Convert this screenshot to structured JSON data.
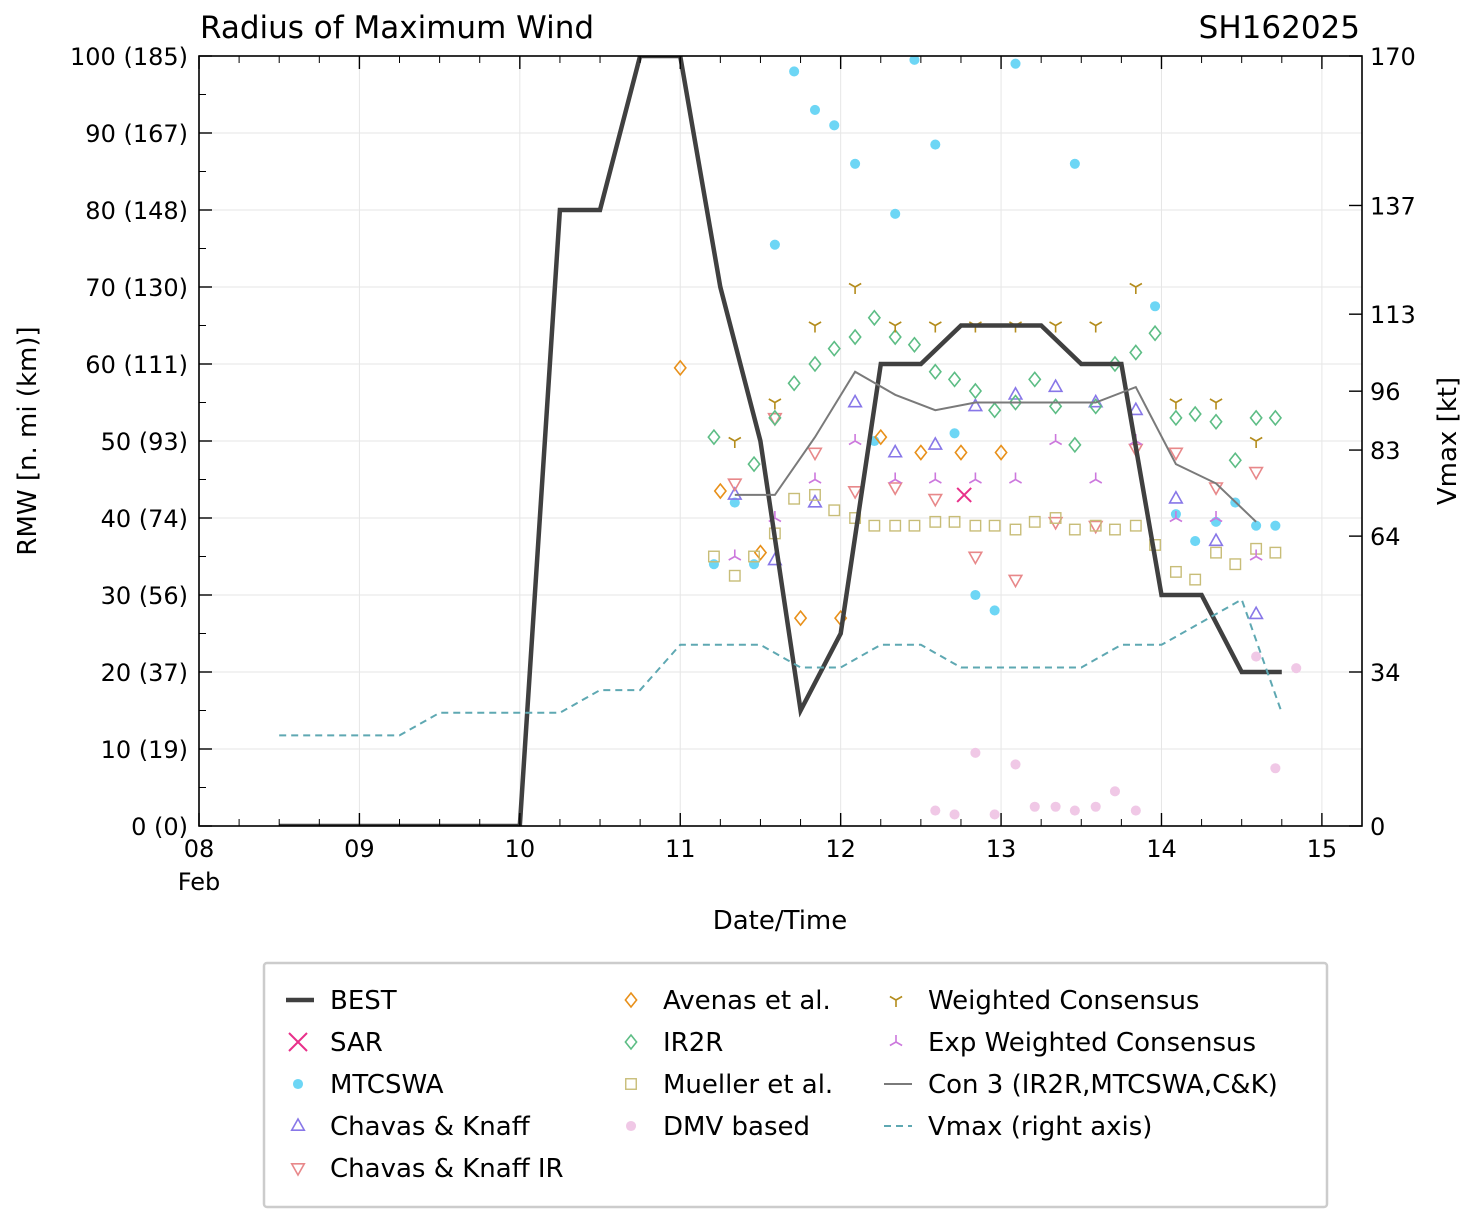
{
  "chart_data": {
    "type": "scatter",
    "title": "Radius of Maximum Wind",
    "storm_id": "SH162025",
    "xlabel": "Date/Time",
    "ylabel": "RMW [n. mi (km)]",
    "y2label": "Vmax [kt]",
    "xlim": [
      8,
      15.25
    ],
    "ylim": [
      0,
      100
    ],
    "y2lim": [
      0,
      170
    ],
    "grid": true,
    "legend_position": "bottom",
    "x_ticks": [
      {
        "v": 8,
        "label": "08",
        "sub": "Feb"
      },
      {
        "v": 9,
        "label": "09",
        "sub": ""
      },
      {
        "v": 10,
        "label": "10",
        "sub": ""
      },
      {
        "v": 11,
        "label": "11",
        "sub": ""
      },
      {
        "v": 12,
        "label": "12",
        "sub": ""
      },
      {
        "v": 13,
        "label": "13",
        "sub": ""
      },
      {
        "v": 14,
        "label": "14",
        "sub": ""
      },
      {
        "v": 15,
        "label": "15",
        "sub": ""
      }
    ],
    "y_ticks": [
      {
        "v": 0,
        "label": "0 (0)"
      },
      {
        "v": 10,
        "label": "10 (19)"
      },
      {
        "v": 20,
        "label": "20 (37)"
      },
      {
        "v": 30,
        "label": "30 (56)"
      },
      {
        "v": 40,
        "label": "40 (74)"
      },
      {
        "v": 50,
        "label": "50 (93)"
      },
      {
        "v": 60,
        "label": "60 (111)"
      },
      {
        "v": 70,
        "label": "70 (130)"
      },
      {
        "v": 80,
        "label": "80 (148)"
      },
      {
        "v": 90,
        "label": "90 (167)"
      },
      {
        "v": 100,
        "label": "100 (185)"
      }
    ],
    "y2_ticks": [
      {
        "v": 0,
        "label": "0"
      },
      {
        "v": 34,
        "label": "34"
      },
      {
        "v": 64,
        "label": "64"
      },
      {
        "v": 83,
        "label": "83"
      },
      {
        "v": 96,
        "label": "96"
      },
      {
        "v": 113,
        "label": "113"
      },
      {
        "v": 137,
        "label": "137"
      },
      {
        "v": 170,
        "label": "170"
      }
    ],
    "series": [
      {
        "name": "BEST",
        "kind": "line",
        "color": "#404040",
        "dash": "",
        "axis": "left",
        "points": [
          [
            8.5,
            0
          ],
          [
            8.75,
            0
          ],
          [
            9,
            0
          ],
          [
            9.25,
            0
          ],
          [
            9.5,
            0
          ],
          [
            9.75,
            0
          ],
          [
            10,
            0
          ],
          [
            10.25,
            80
          ],
          [
            10.5,
            80
          ],
          [
            10.75,
            100
          ],
          [
            11,
            100
          ],
          [
            11.25,
            70
          ],
          [
            11.5,
            50
          ],
          [
            11.75,
            15
          ],
          [
            12,
            25
          ],
          [
            12.25,
            60
          ],
          [
            12.5,
            60
          ],
          [
            12.75,
            65
          ],
          [
            13,
            65
          ],
          [
            13.25,
            65
          ],
          [
            13.5,
            60
          ],
          [
            13.75,
            60
          ],
          [
            14,
            30
          ],
          [
            14.25,
            30
          ],
          [
            14.5,
            20
          ],
          [
            14.75,
            20
          ]
        ]
      },
      {
        "name": "SAR",
        "kind": "marker",
        "marker": "x",
        "color": "#e8308a",
        "axis": "left",
        "points": [
          [
            12.77,
            43
          ]
        ]
      },
      {
        "name": "MTCSWA",
        "kind": "marker",
        "marker": "circle",
        "color": "#6dd6f5",
        "axis": "left",
        "points": [
          [
            11.21,
            34
          ],
          [
            11.34,
            42
          ],
          [
            11.46,
            34
          ],
          [
            11.59,
            75.5
          ],
          [
            11.71,
            98
          ],
          [
            11.84,
            93
          ],
          [
            11.96,
            91
          ],
          [
            12.09,
            86
          ],
          [
            12.34,
            79.5
          ],
          [
            12.21,
            50
          ],
          [
            12.46,
            99.5
          ],
          [
            12.59,
            88.5
          ],
          [
            12.71,
            51
          ],
          [
            12.84,
            30
          ],
          [
            12.96,
            28
          ],
          [
            13.09,
            99
          ],
          [
            13.46,
            86
          ],
          [
            13.96,
            67.5
          ],
          [
            14.09,
            40.5
          ],
          [
            14.21,
            37
          ],
          [
            14.34,
            39.5
          ],
          [
            14.46,
            42
          ],
          [
            14.59,
            39
          ],
          [
            14.71,
            39
          ]
        ]
      },
      {
        "name": "Chavas & Knaff",
        "kind": "marker",
        "marker": "tri-up",
        "color": "#8877e8",
        "axis": "left",
        "points": [
          [
            11.34,
            43
          ],
          [
            11.59,
            34.5
          ],
          [
            11.84,
            42
          ],
          [
            12.09,
            55
          ],
          [
            12.34,
            48.5
          ],
          [
            12.59,
            49.5
          ],
          [
            12.84,
            54.5
          ],
          [
            13.09,
            56
          ],
          [
            13.34,
            57
          ],
          [
            13.59,
            55
          ],
          [
            13.84,
            54
          ],
          [
            14.09,
            42.5
          ],
          [
            14.34,
            37
          ],
          [
            14.59,
            27.5
          ]
        ]
      },
      {
        "name": "Chavas & Knaff IR",
        "kind": "marker",
        "marker": "tri-down",
        "color": "#e8888a",
        "axis": "left",
        "points": [
          [
            11.34,
            44.5
          ],
          [
            11.59,
            53
          ],
          [
            11.84,
            48.5
          ],
          [
            12.09,
            43.5
          ],
          [
            12.34,
            44
          ],
          [
            12.59,
            42.5
          ],
          [
            12.84,
            35
          ],
          [
            13.09,
            32
          ],
          [
            13.34,
            39.5
          ],
          [
            13.59,
            39
          ],
          [
            13.84,
            49
          ],
          [
            14.09,
            48.5
          ],
          [
            14.34,
            44
          ],
          [
            14.59,
            46
          ]
        ]
      },
      {
        "name": "Avenas et al.",
        "kind": "marker",
        "marker": "diamond",
        "color": "#e8901a",
        "axis": "left",
        "points": [
          [
            11.0,
            59.5
          ],
          [
            11.25,
            43.5
          ],
          [
            11.5,
            35.5
          ],
          [
            11.75,
            27
          ],
          [
            12.0,
            27
          ],
          [
            12.25,
            50.5
          ],
          [
            12.5,
            48.5
          ],
          [
            12.75,
            48.5
          ],
          [
            13.0,
            48.5
          ]
        ]
      },
      {
        "name": "IR2R",
        "kind": "marker",
        "marker": "diamond",
        "color": "#5dbd85",
        "axis": "left",
        "points": [
          [
            11.21,
            50.5
          ],
          [
            11.46,
            47
          ],
          [
            11.59,
            53
          ],
          [
            11.71,
            57.5
          ],
          [
            11.84,
            60
          ],
          [
            11.96,
            62
          ],
          [
            12.09,
            63.5
          ],
          [
            12.21,
            66
          ],
          [
            12.34,
            63.5
          ],
          [
            12.46,
            62.5
          ],
          [
            12.59,
            59
          ],
          [
            12.71,
            58
          ],
          [
            12.84,
            56.5
          ],
          [
            12.96,
            54
          ],
          [
            13.09,
            55
          ],
          [
            13.21,
            58
          ],
          [
            13.34,
            54.5
          ],
          [
            13.46,
            49.5
          ],
          [
            13.59,
            54.5
          ],
          [
            13.71,
            60
          ],
          [
            13.84,
            61.5
          ],
          [
            13.96,
            64
          ],
          [
            14.09,
            53
          ],
          [
            14.21,
            53.5
          ],
          [
            14.34,
            52.5
          ],
          [
            14.46,
            47.5
          ],
          [
            14.59,
            53
          ],
          [
            14.71,
            53
          ]
        ]
      },
      {
        "name": "Mueller et al.",
        "kind": "marker",
        "marker": "square",
        "color": "#c8bd78",
        "axis": "left",
        "points": [
          [
            11.21,
            35
          ],
          [
            11.34,
            32.5
          ],
          [
            11.46,
            35
          ],
          [
            11.59,
            38
          ],
          [
            11.71,
            42.5
          ],
          [
            11.84,
            43
          ],
          [
            11.96,
            41
          ],
          [
            12.09,
            40
          ],
          [
            12.21,
            39
          ],
          [
            12.34,
            39
          ],
          [
            12.46,
            39
          ],
          [
            12.59,
            39.5
          ],
          [
            12.71,
            39.5
          ],
          [
            12.84,
            39
          ],
          [
            12.96,
            39
          ],
          [
            13.09,
            38.5
          ],
          [
            13.21,
            39.5
          ],
          [
            13.34,
            40
          ],
          [
            13.46,
            38.5
          ],
          [
            13.59,
            39
          ],
          [
            13.71,
            38.5
          ],
          [
            13.84,
            39
          ],
          [
            13.96,
            36.5
          ],
          [
            14.09,
            33
          ],
          [
            14.21,
            32
          ],
          [
            14.34,
            35.5
          ],
          [
            14.46,
            34
          ],
          [
            14.59,
            36
          ],
          [
            14.71,
            35.5
          ]
        ]
      },
      {
        "name": "DMV based",
        "kind": "marker",
        "marker": "circle",
        "color": "#f0c8e6",
        "axis": "left",
        "points": [
          [
            12.59,
            2
          ],
          [
            12.71,
            1.5
          ],
          [
            12.84,
            9.5
          ],
          [
            12.96,
            1.5
          ],
          [
            13.09,
            8
          ],
          [
            13.21,
            2.5
          ],
          [
            13.34,
            2.5
          ],
          [
            13.46,
            2
          ],
          [
            13.59,
            2.5
          ],
          [
            13.71,
            4.5
          ],
          [
            13.84,
            2
          ],
          [
            14.59,
            22
          ],
          [
            14.71,
            7.5
          ],
          [
            14.84,
            20.5
          ]
        ]
      },
      {
        "name": "Weighted Consensus",
        "kind": "marker",
        "marker": "tri-down-y",
        "color": "#b48c1c",
        "axis": "left",
        "points": [
          [
            11.34,
            50
          ],
          [
            11.59,
            55
          ],
          [
            11.84,
            65
          ],
          [
            12.09,
            70
          ],
          [
            12.34,
            65
          ],
          [
            12.59,
            65
          ],
          [
            12.84,
            65
          ],
          [
            13.09,
            65
          ],
          [
            13.34,
            65
          ],
          [
            13.59,
            65
          ],
          [
            13.84,
            70
          ],
          [
            14.09,
            55
          ],
          [
            14.34,
            55
          ],
          [
            14.59,
            50
          ]
        ]
      },
      {
        "name": "Exp Weighted Consensus",
        "kind": "marker",
        "marker": "tri-up-y",
        "color": "#cc78dd",
        "axis": "left",
        "points": [
          [
            11.34,
            35
          ],
          [
            11.59,
            40
          ],
          [
            11.84,
            45
          ],
          [
            12.09,
            50
          ],
          [
            12.34,
            45
          ],
          [
            12.59,
            45
          ],
          [
            12.84,
            45
          ],
          [
            13.09,
            45
          ],
          [
            13.34,
            50
          ],
          [
            13.59,
            45
          ],
          [
            13.84,
            50
          ],
          [
            14.09,
            40
          ],
          [
            14.34,
            40
          ],
          [
            14.59,
            35
          ]
        ]
      },
      {
        "name": "Con 3 (IR2R,MTCSWA,C&K)",
        "kind": "line",
        "color": "#7a7a7a",
        "dash": "",
        "axis": "left",
        "points": [
          [
            11.34,
            43
          ],
          [
            11.59,
            43
          ],
          [
            11.84,
            50.5
          ],
          [
            12.09,
            59
          ],
          [
            12.34,
            56
          ],
          [
            12.59,
            54
          ],
          [
            12.84,
            55
          ],
          [
            13.09,
            55
          ],
          [
            13.34,
            55
          ],
          [
            13.59,
            55
          ],
          [
            13.84,
            57
          ],
          [
            14.09,
            47
          ],
          [
            14.34,
            44.5
          ],
          [
            14.59,
            39.5
          ]
        ]
      },
      {
        "name": "Vmax (right axis)",
        "kind": "line",
        "color": "#5ea8b2",
        "dash": "7,5",
        "axis": "right",
        "points": [
          [
            8.5,
            20
          ],
          [
            8.75,
            20
          ],
          [
            9,
            20
          ],
          [
            9.25,
            20
          ],
          [
            9.5,
            25
          ],
          [
            9.75,
            25
          ],
          [
            10,
            25
          ],
          [
            10.25,
            25
          ],
          [
            10.5,
            30
          ],
          [
            10.75,
            30
          ],
          [
            11,
            40
          ],
          [
            11.25,
            40
          ],
          [
            11.5,
            40
          ],
          [
            11.75,
            35
          ],
          [
            12,
            35
          ],
          [
            12.25,
            40
          ],
          [
            12.5,
            40
          ],
          [
            12.75,
            35
          ],
          [
            13,
            35
          ],
          [
            13.25,
            35
          ],
          [
            13.5,
            35
          ],
          [
            13.75,
            40
          ],
          [
            14,
            40
          ],
          [
            14.25,
            45
          ],
          [
            14.5,
            50
          ],
          [
            14.75,
            25
          ]
        ]
      }
    ]
  }
}
